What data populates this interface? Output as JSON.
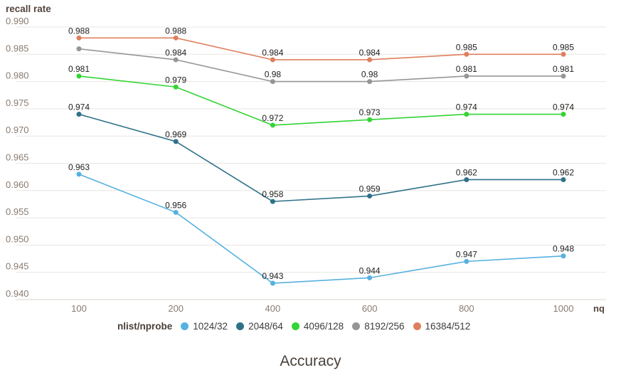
{
  "chart_data": {
    "type": "line",
    "title": "Accuracy",
    "ylabel": "recall rate",
    "xlabel": "nq",
    "legend_title": "nlist/nprobe",
    "legend_position": "bottom",
    "grid": true,
    "x": [
      100,
      200,
      400,
      600,
      800,
      1000
    ],
    "x_labels": [
      "100",
      "200",
      "400",
      "600",
      "800",
      "1000"
    ],
    "ylim": [
      0.94,
      0.99
    ],
    "y_ticks": [
      "0.990",
      "0.985",
      "0.980",
      "0.975",
      "0.970",
      "0.965",
      "0.960",
      "0.955",
      "0.950",
      "0.945",
      "0.940"
    ],
    "series": [
      {
        "name": "1024/32",
        "color": "#55b1e0",
        "values": [
          0.963,
          0.956,
          0.943,
          0.944,
          0.947,
          0.948
        ],
        "labels": [
          "0.963",
          "0.956",
          "0.943",
          "0.944",
          "0.947",
          "0.948"
        ]
      },
      {
        "name": "2048/64",
        "color": "#2f7189",
        "values": [
          0.974,
          0.969,
          0.958,
          0.959,
          0.962,
          0.962
        ],
        "labels": [
          "0.974",
          "0.969",
          "0.958",
          "0.959",
          "0.962",
          "0.962"
        ]
      },
      {
        "name": "4096/128",
        "color": "#33d433",
        "values": [
          0.981,
          0.979,
          0.972,
          0.973,
          0.974,
          0.974
        ],
        "labels": [
          "0.981",
          "0.979",
          "0.972",
          "0.973",
          "0.974",
          "0.974"
        ]
      },
      {
        "name": "8192/256",
        "color": "#969696",
        "values": [
          0.986,
          0.984,
          0.98,
          0.98,
          0.981,
          0.981
        ],
        "labels": [
          null,
          "0.984",
          "0.98",
          "0.98",
          "0.981",
          "0.981"
        ]
      },
      {
        "name": "16384/512",
        "color": "#df7f5e",
        "values": [
          0.988,
          0.988,
          0.984,
          0.984,
          0.985,
          0.985
        ],
        "labels": [
          "0.988",
          "0.988",
          "0.984",
          "0.984",
          "0.985",
          "0.985"
        ]
      }
    ]
  },
  "theme": {
    "background": "#ffffff",
    "grid_line": "#e9e5e1",
    "axis_line": "#d9d3cd",
    "axis_text": "#8a7b70",
    "axis_title": "#54453c",
    "data_label": "#1e1e1e",
    "legend_title_color": "#4a3f38",
    "legend_text": "#3d3d3d",
    "chart_title_color": "#4a423b"
  }
}
